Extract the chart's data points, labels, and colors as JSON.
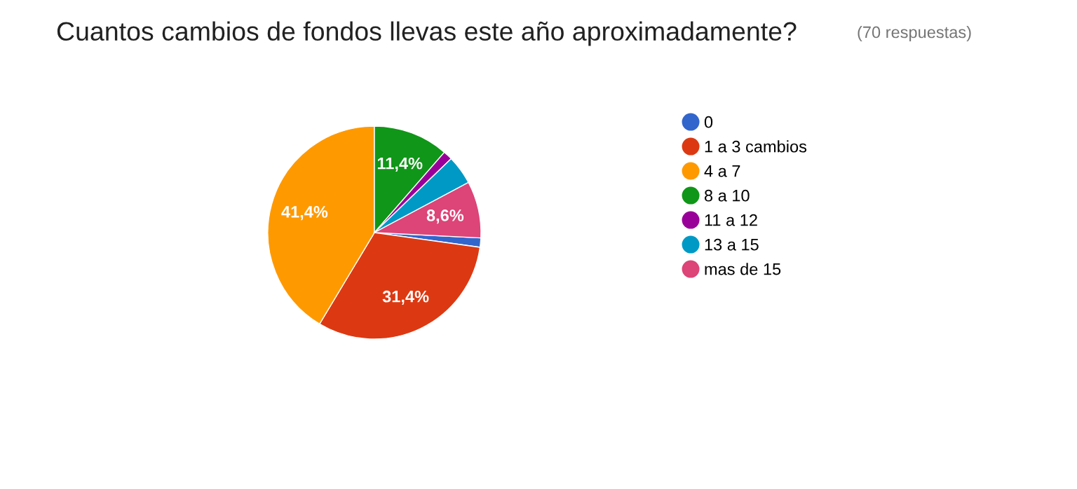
{
  "chart_data": {
    "type": "pie",
    "title": "Cuantos cambios de fondos llevas este año aproximadamente?",
    "subtitle": "(70 respuestas)",
    "categories": [
      "0",
      "1 a 3 cambios",
      "4 a 7",
      "8 a 10",
      "11 a 12",
      "13 a 15",
      "mas de 15"
    ],
    "values": [
      1.4,
      31.4,
      41.4,
      11.4,
      1.4,
      4.4,
      8.6
    ],
    "colors": [
      "#3366cc",
      "#dc3912",
      "#ff9900",
      "#109618",
      "#990099",
      "#0099c6",
      "#dd4477"
    ],
    "value_labels": [
      null,
      "31,4%",
      "41,4%",
      "11,4%",
      null,
      null,
      "8,6%"
    ],
    "legend": "right"
  }
}
